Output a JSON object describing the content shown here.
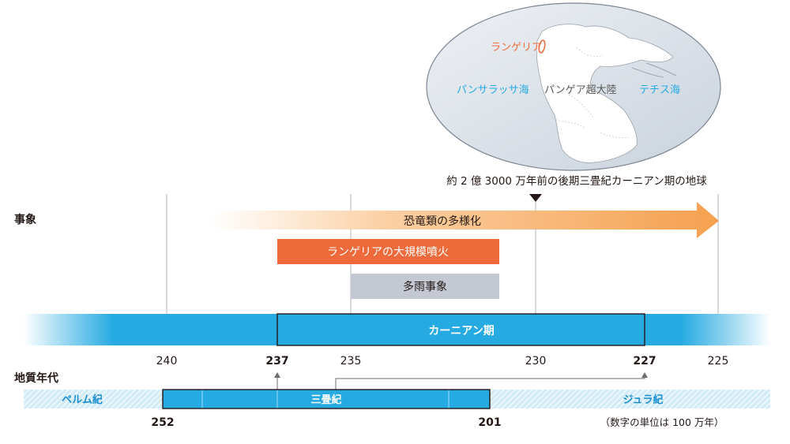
{
  "globe": {
    "labels": {
      "langeria": "ランゲリア",
      "panthalassa": "パンサラッサ海",
      "pangaea": "パンゲア超大陸",
      "tethys": "テチス海"
    },
    "caption": "約 2 億 3000 万年前の後期三畳紀カーニアン期の地球"
  },
  "events": {
    "section_label": "事象",
    "dinosaur": "恐竜類の多様化",
    "eruption": "ランゲリアの大規模噴火",
    "rain": "多雨事象"
  },
  "carnian": {
    "label": "カーニアン期",
    "ticks": [
      {
        "label": "240",
        "bold": false
      },
      {
        "label": "237",
        "bold": true
      },
      {
        "label": "235",
        "bold": false
      },
      {
        "label": "230",
        "bold": false
      },
      {
        "label": "227",
        "bold": true
      },
      {
        "label": "225",
        "bold": false
      }
    ]
  },
  "geology": {
    "section_label": "地質年代",
    "permian": "ペルム紀",
    "triassic": "三畳紀",
    "jurassic": "ジュラ紀",
    "start": "252",
    "end": "201",
    "unit_note": "（数字の単位は 100 万年）"
  },
  "colors": {
    "orange_light": "#fde3c6",
    "orange": "#f5a04f",
    "eruption": "#ee6a3a",
    "rain": "#c3c8d2",
    "blue": "#26aae2",
    "blue_text": "#1b8fcf",
    "dark": "#231815",
    "gridline": "#b5b5b5"
  }
}
